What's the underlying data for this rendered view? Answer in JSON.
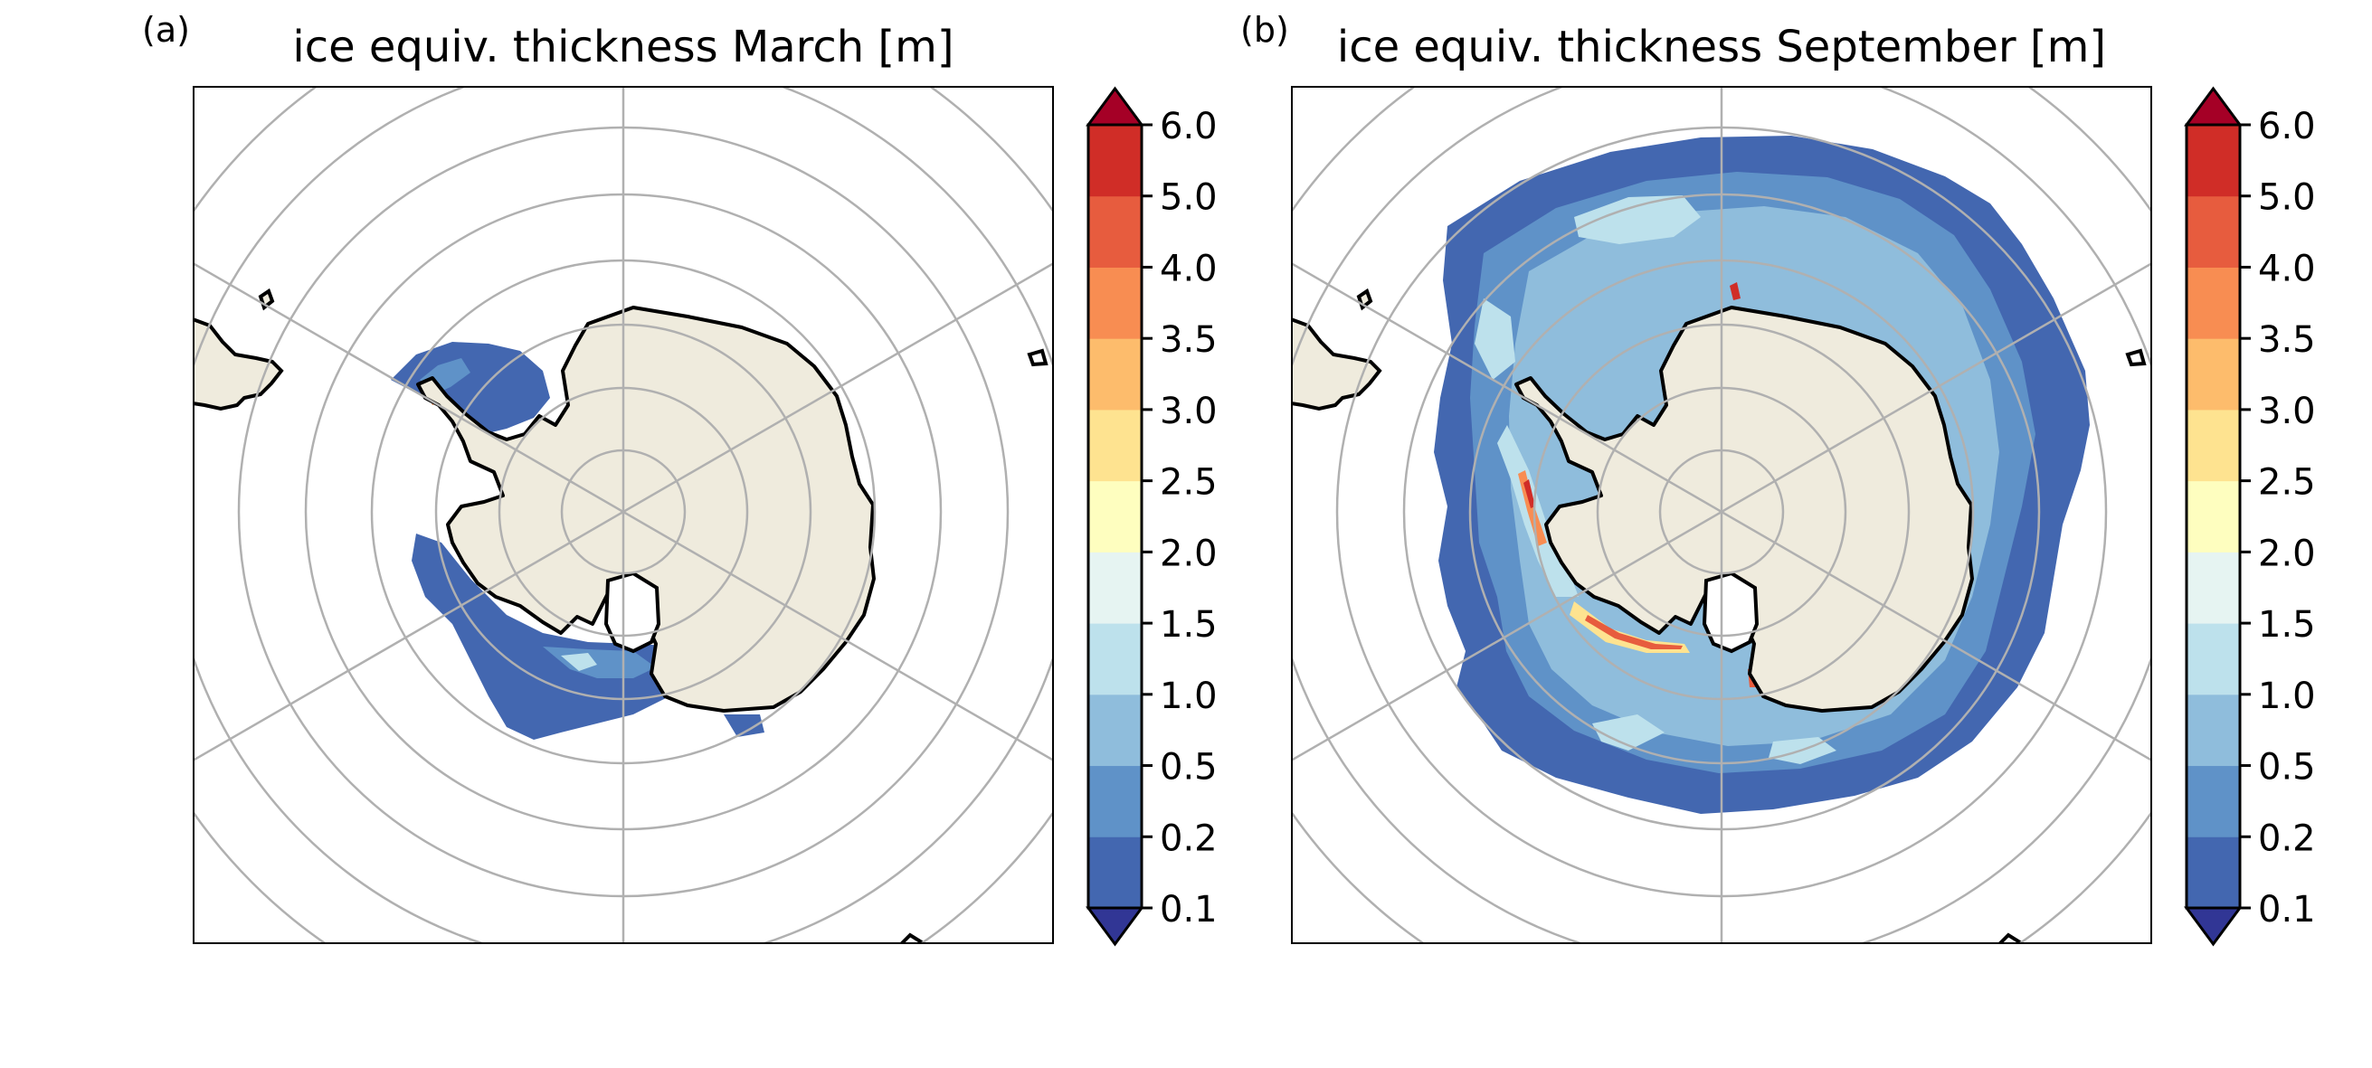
{
  "panels": [
    {
      "letter": "(a)",
      "title": "ice equiv. thickness March [m]",
      "month": "March"
    },
    {
      "letter": "(b)",
      "title": "ice equiv. thickness September [m]",
      "month": "September"
    }
  ],
  "colorbar": {
    "ticks": [
      "0.1",
      "0.2",
      "0.5",
      "1.0",
      "1.5",
      "2.0",
      "2.5",
      "3.0",
      "3.5",
      "4.0",
      "5.0",
      "6.0"
    ],
    "colors": [
      "#4367b0",
      "#5f92c8",
      "#8fbddc",
      "#bde1ec",
      "#e6f4f2",
      "#fefebf",
      "#fee390",
      "#fdbc6c",
      "#f88d52",
      "#e75c3e",
      "#d02d27"
    ],
    "under_color": "#313695",
    "over_color": "#a50026",
    "extend": "both"
  },
  "map_colors": {
    "land": "#efebdd",
    "coast": "#000000",
    "graticule": "#b0b0b0",
    "frame": "#000000"
  }
}
